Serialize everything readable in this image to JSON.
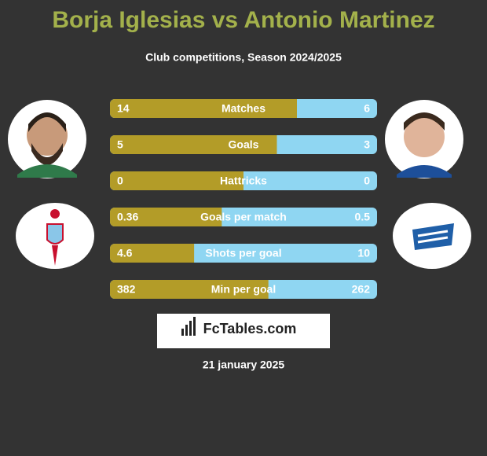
{
  "title": "Borja Iglesias vs Antonio Martinez",
  "subtitle": "Club competitions, Season 2024/2025",
  "rows": [
    {
      "label": "Matches",
      "left": 14,
      "right": 6
    },
    {
      "label": "Goals",
      "left": 5,
      "right": 3
    },
    {
      "label": "Hattricks",
      "left": 0,
      "right": 0
    },
    {
      "label": "Goals per match",
      "left": 0.36,
      "right": 0.5
    },
    {
      "label": "Shots per goal",
      "left": 4.6,
      "right": 10
    },
    {
      "label": "Min per goal",
      "left": 382,
      "right": 262
    }
  ],
  "brand": "FcTables.com",
  "date": "21 january 2025"
}
